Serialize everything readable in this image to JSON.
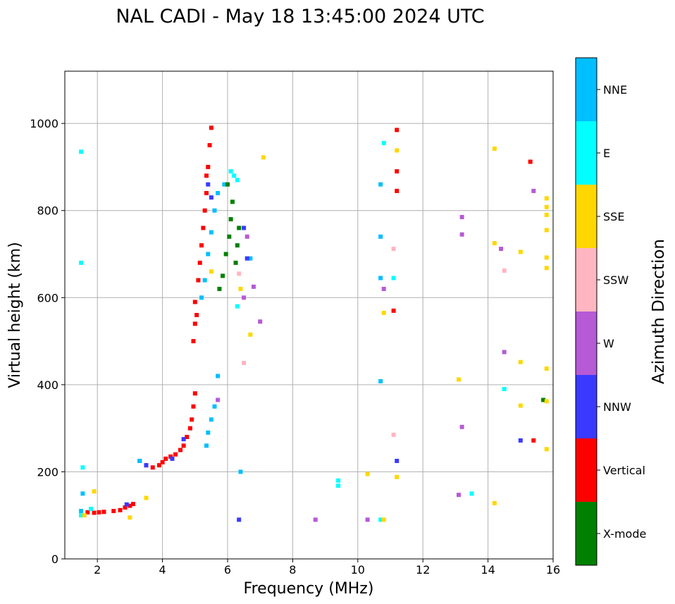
{
  "chart_data": {
    "type": "scatter",
    "title": "NAL CADI - May 18 13:45:00 2024 UTC",
    "xlabel": "Frequency (MHz)",
    "ylabel": "Virtual height (km)",
    "xlim": [
      1,
      16
    ],
    "ylim": [
      0,
      1120
    ],
    "xticks": [
      "2",
      "4",
      "6",
      "8",
      "10",
      "12",
      "14",
      "16"
    ],
    "yticks": [
      "0",
      "200",
      "400",
      "600",
      "800",
      "1000"
    ],
    "grid": true,
    "colorbar": {
      "title": "Azimuth Direction",
      "categories": [
        {
          "name": "X-mode",
          "color": "#008000"
        },
        {
          "name": "Vertical",
          "color": "#ff0000"
        },
        {
          "name": "NNW",
          "color": "#3a3aff"
        },
        {
          "name": "W",
          "color": "#b65ad6"
        },
        {
          "name": "SSW",
          "color": "#ffb6c1"
        },
        {
          "name": "SSE",
          "color": "#ffd700"
        },
        {
          "name": "E",
          "color": "#00ffff"
        },
        {
          "name": "NNE",
          "color": "#00bfff"
        }
      ]
    },
    "traces": [
      {
        "category": "Vertical",
        "points": [
          [
            1.7,
            107
          ],
          [
            1.9,
            106
          ],
          [
            2.05,
            107
          ],
          [
            2.2,
            108
          ],
          [
            2.5,
            110
          ],
          [
            2.7,
            112
          ],
          [
            2.85,
            118
          ],
          [
            3.0,
            122
          ],
          [
            3.1,
            126
          ],
          [
            3.3,
            225
          ],
          [
            3.5,
            215
          ],
          [
            3.7,
            210
          ],
          [
            3.9,
            215
          ],
          [
            4.0,
            222
          ],
          [
            4.1,
            230
          ],
          [
            4.25,
            235
          ],
          [
            4.4,
            240
          ],
          [
            4.55,
            250
          ],
          [
            4.65,
            260
          ],
          [
            4.75,
            280
          ],
          [
            4.85,
            300
          ],
          [
            4.9,
            320
          ],
          [
            4.95,
            350
          ],
          [
            5.0,
            380
          ],
          [
            4.95,
            500
          ],
          [
            5.0,
            540
          ],
          [
            5.05,
            560
          ],
          [
            5.0,
            590
          ],
          [
            5.1,
            640
          ],
          [
            5.15,
            680
          ],
          [
            5.2,
            720
          ],
          [
            5.25,
            760
          ],
          [
            5.3,
            800
          ],
          [
            5.35,
            840
          ],
          [
            5.35,
            880
          ],
          [
            5.4,
            900
          ],
          [
            5.45,
            950
          ],
          [
            5.5,
            990
          ],
          [
            11.2,
            985
          ],
          [
            11.2,
            890
          ],
          [
            11.2,
            845
          ],
          [
            11.1,
            570
          ],
          [
            15.3,
            912
          ],
          [
            15.4,
            272
          ]
        ]
      },
      {
        "category": "NNE",
        "points": [
          [
            1.5,
            110
          ],
          [
            1.55,
            150
          ],
          [
            3.3,
            225
          ],
          [
            5.2,
            600
          ],
          [
            5.3,
            640
          ],
          [
            5.4,
            700
          ],
          [
            5.5,
            750
          ],
          [
            5.6,
            800
          ],
          [
            5.7,
            840
          ],
          [
            5.9,
            860
          ],
          [
            5.6,
            350
          ],
          [
            5.5,
            320
          ],
          [
            5.4,
            290
          ],
          [
            5.35,
            260
          ],
          [
            5.7,
            420
          ],
          [
            10.7,
            860
          ],
          [
            10.7,
            408
          ],
          [
            10.7,
            740
          ],
          [
            10.7,
            645
          ],
          [
            6.4,
            200
          ],
          [
            6.7,
            690
          ]
        ]
      },
      {
        "category": "X-mode",
        "points": [
          [
            5.75,
            620
          ],
          [
            5.85,
            650
          ],
          [
            5.95,
            700
          ],
          [
            6.05,
            740
          ],
          [
            6.1,
            780
          ],
          [
            6.15,
            820
          ],
          [
            6.0,
            860
          ],
          [
            6.25,
            680
          ],
          [
            6.3,
            720
          ],
          [
            6.35,
            760
          ],
          [
            15.7,
            365
          ]
        ]
      },
      {
        "category": "E",
        "points": [
          [
            1.5,
            935
          ],
          [
            1.5,
            680
          ],
          [
            1.5,
            100
          ],
          [
            1.55,
            210
          ],
          [
            1.8,
            115
          ],
          [
            6.1,
            890
          ],
          [
            6.2,
            880
          ],
          [
            6.3,
            580
          ],
          [
            6.3,
            870
          ],
          [
            9.4,
            180
          ],
          [
            9.4,
            168
          ],
          [
            10.7,
            90
          ],
          [
            10.8,
            955
          ],
          [
            11.1,
            645
          ],
          [
            13.5,
            150
          ],
          [
            14.5,
            390
          ]
        ]
      },
      {
        "category": "NNW",
        "points": [
          [
            2.9,
            125
          ],
          [
            3.5,
            215
          ],
          [
            4.3,
            230
          ],
          [
            4.65,
            275
          ],
          [
            5.4,
            860
          ],
          [
            5.5,
            830
          ],
          [
            6.35,
            90
          ],
          [
            6.5,
            760
          ],
          [
            6.6,
            690
          ],
          [
            11.2,
            225
          ],
          [
            15.0,
            272
          ]
        ]
      },
      {
        "category": "W",
        "points": [
          [
            5.7,
            365
          ],
          [
            6.5,
            600
          ],
          [
            6.6,
            740
          ],
          [
            6.8,
            625
          ],
          [
            7.0,
            545
          ],
          [
            8.7,
            90
          ],
          [
            10.3,
            90
          ],
          [
            10.8,
            620
          ],
          [
            13.2,
            785
          ],
          [
            13.2,
            745
          ],
          [
            13.2,
            303
          ],
          [
            13.1,
            147
          ],
          [
            14.4,
            712
          ],
          [
            14.5,
            475
          ],
          [
            15.4,
            845
          ]
        ]
      },
      {
        "category": "SSW",
        "points": [
          [
            6.35,
            655
          ],
          [
            6.5,
            450
          ],
          [
            11.1,
            712
          ],
          [
            11.1,
            285
          ],
          [
            14.5,
            662
          ]
        ]
      },
      {
        "category": "SSE",
        "points": [
          [
            1.6,
            100
          ],
          [
            1.9,
            155
          ],
          [
            3.0,
            95
          ],
          [
            3.5,
            140
          ],
          [
            5.5,
            660
          ],
          [
            6.4,
            620
          ],
          [
            6.7,
            515
          ],
          [
            7.1,
            922
          ],
          [
            10.3,
            195
          ],
          [
            10.8,
            90
          ],
          [
            10.8,
            565
          ],
          [
            11.2,
            938
          ],
          [
            11.2,
            188
          ],
          [
            13.1,
            412
          ],
          [
            14.2,
            942
          ],
          [
            14.2,
            725
          ],
          [
            14.2,
            128
          ],
          [
            15.0,
            705
          ],
          [
            15.0,
            452
          ],
          [
            15.0,
            352
          ],
          [
            15.8,
            828
          ],
          [
            15.8,
            808
          ],
          [
            15.8,
            790
          ],
          [
            15.8,
            755
          ],
          [
            15.8,
            692
          ],
          [
            15.8,
            668
          ],
          [
            15.8,
            437
          ],
          [
            15.8,
            362
          ],
          [
            15.8,
            252
          ]
        ]
      }
    ]
  }
}
